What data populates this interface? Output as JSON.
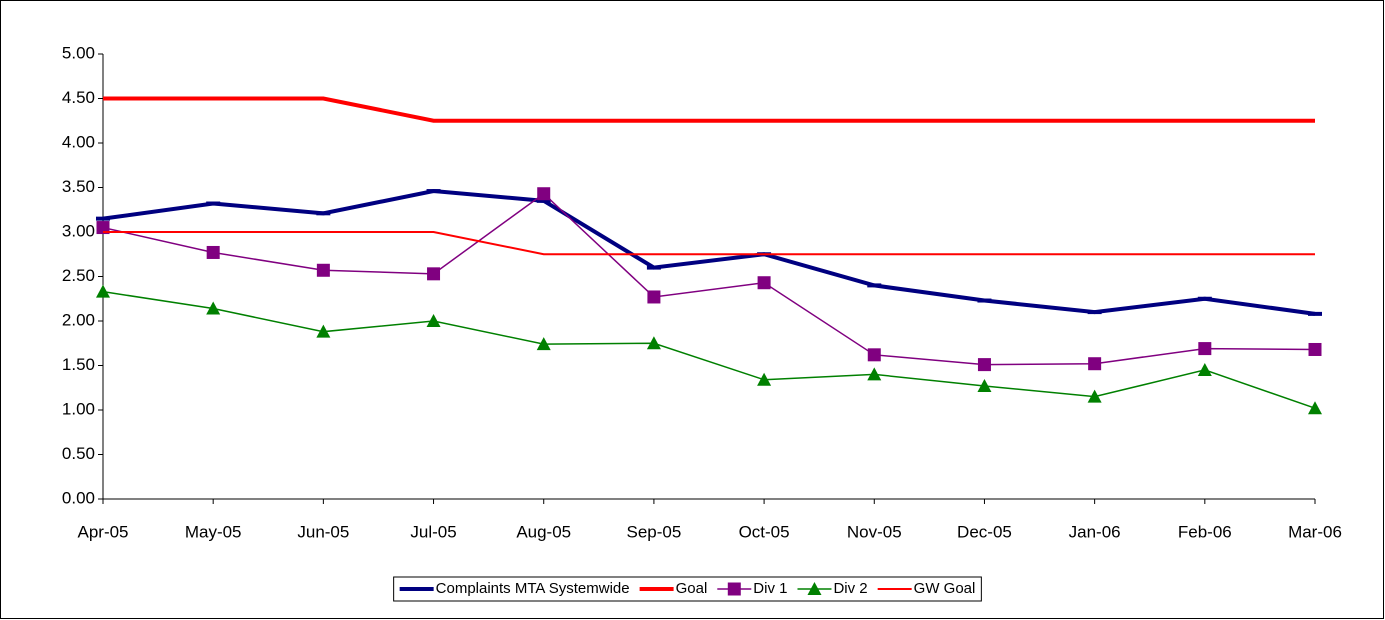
{
  "chart_data": {
    "type": "line",
    "categories": [
      "Apr-05",
      "May-05",
      "Jun-05",
      "Jul-05",
      "Aug-05",
      "Sep-05",
      "Oct-05",
      "Nov-05",
      "Dec-05",
      "Jan-06",
      "Feb-06",
      "Mar-06"
    ],
    "series": [
      {
        "name": "Complaints MTA Systemwide",
        "color": "#000080",
        "width": 4,
        "marker": "dash",
        "values": [
          3.15,
          3.32,
          3.21,
          3.46,
          3.35,
          2.6,
          2.75,
          2.4,
          2.23,
          2.1,
          2.25,
          2.08
        ]
      },
      {
        "name": "Goal",
        "color": "#ff0000",
        "width": 4,
        "marker": "none",
        "values": [
          4.5,
          4.5,
          4.5,
          4.25,
          4.25,
          4.25,
          4.25,
          4.25,
          4.25,
          4.25,
          4.25,
          4.25
        ]
      },
      {
        "name": "Div 1",
        "color": "#800080",
        "width": 1.5,
        "marker": "square",
        "values": [
          3.05,
          2.77,
          2.57,
          2.53,
          3.43,
          2.27,
          2.43,
          1.62,
          1.51,
          1.52,
          1.69,
          1.68
        ]
      },
      {
        "name": "Div 2",
        "color": "#008000",
        "width": 1.5,
        "marker": "triangle",
        "values": [
          2.33,
          2.14,
          1.88,
          2.0,
          1.74,
          1.75,
          1.34,
          1.4,
          1.27,
          1.15,
          1.45,
          1.02
        ]
      },
      {
        "name": "GW Goal",
        "color": "#ff0000",
        "width": 2,
        "marker": "none",
        "values": [
          3.0,
          3.0,
          3.0,
          3.0,
          2.75,
          2.75,
          2.75,
          2.75,
          2.75,
          2.75,
          2.75,
          2.75
        ]
      }
    ],
    "ylim": [
      0,
      5
    ],
    "yticks": [
      {
        "value": 0,
        "label": "0.00"
      },
      {
        "value": 0.5,
        "label": "0.50"
      },
      {
        "value": 1,
        "label": "1.00"
      },
      {
        "value": 1.5,
        "label": "1.50"
      },
      {
        "value": 2,
        "label": "2.00"
      },
      {
        "value": 2.5,
        "label": "2.50"
      },
      {
        "value": 3,
        "label": "3.00"
      },
      {
        "value": 3.5,
        "label": "3.50"
      },
      {
        "value": 4,
        "label": "4.00"
      },
      {
        "value": 4.5,
        "label": "4.50"
      },
      {
        "value": 5,
        "label": "5.00"
      }
    ],
    "grid": false,
    "legend": "bottom"
  }
}
